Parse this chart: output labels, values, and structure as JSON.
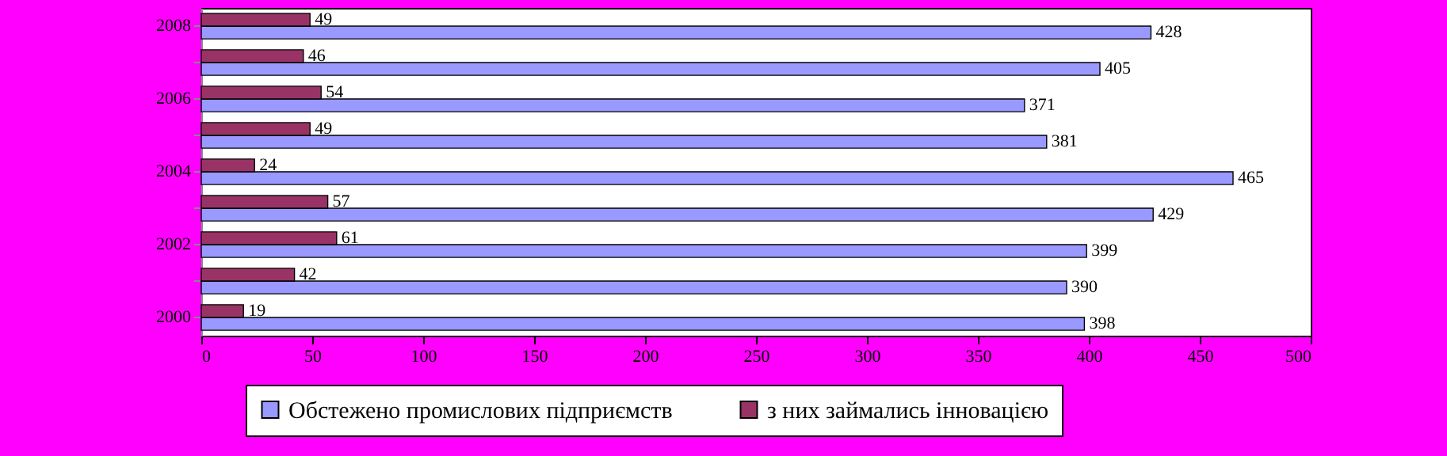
{
  "chart_data": {
    "type": "bar",
    "orientation": "horizontal",
    "categories": [
      "2008",
      null,
      "2006",
      null,
      "2004",
      null,
      "2002",
      null,
      "2000"
    ],
    "series": [
      {
        "name": "Обстежено промислових підприємств",
        "color": "#9999ff",
        "values": [
          428,
          405,
          371,
          381,
          465,
          429,
          399,
          390,
          398
        ]
      },
      {
        "name": "з них займались інновацією",
        "color": "#993366",
        "values": [
          49,
          46,
          54,
          49,
          24,
          57,
          61,
          42,
          19
        ]
      }
    ],
    "xlim": [
      0,
      500
    ],
    "xticks": [
      0,
      50,
      100,
      150,
      200,
      250,
      300,
      350,
      400,
      450,
      500
    ],
    "data_labels": true,
    "legend": "bottom"
  }
}
